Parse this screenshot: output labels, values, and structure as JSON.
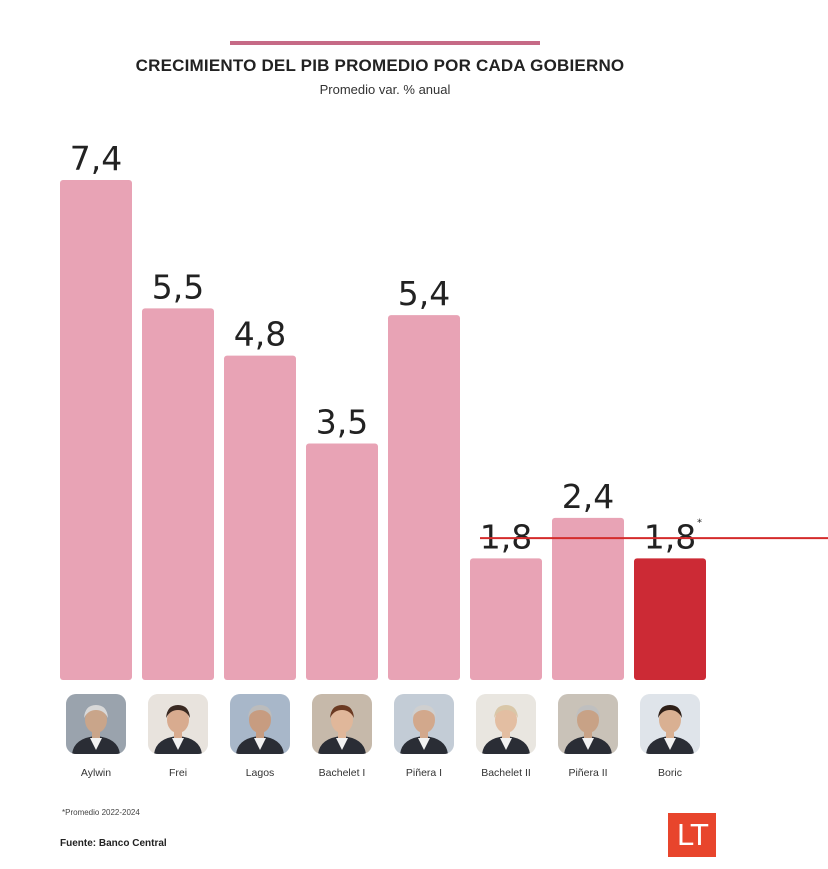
{
  "chart_data": {
    "type": "bar",
    "title": "CRECIMIENTO DEL PIB PROMEDIO POR CADA GOBIERNO",
    "subtitle": "Promedio var. % anual",
    "categories": [
      "Aylwin",
      "Frei",
      "Lagos",
      "Bachelet I",
      "Piñera I",
      "Bachelet II",
      "Piñera II",
      "Boric"
    ],
    "values": [
      7.4,
      5.5,
      4.8,
      3.5,
      5.4,
      1.8,
      2.4,
      1.8
    ],
    "value_labels": [
      "7,4",
      "5,5",
      "4,8",
      "3,5",
      "5,4",
      "1,8",
      "2,4",
      "1,8"
    ],
    "highlight": [
      false,
      false,
      false,
      false,
      false,
      false,
      false,
      true
    ],
    "value_marker": [
      "",
      "",
      "",
      "",
      "",
      "",
      "",
      "*"
    ],
    "ylim": [
      0,
      7.4
    ],
    "grid": false,
    "reference_line": {
      "value": 2.1,
      "color": "#d42b2b"
    },
    "colors": {
      "bar": "#e8a3b5",
      "highlight": "#cc2a35",
      "accent_rule": "#c66a86"
    },
    "footnote": "*Promedio 2022-2024",
    "source": "Fuente: Banco Central"
  },
  "logo_text": "LT",
  "logo_color": "#e8452c"
}
